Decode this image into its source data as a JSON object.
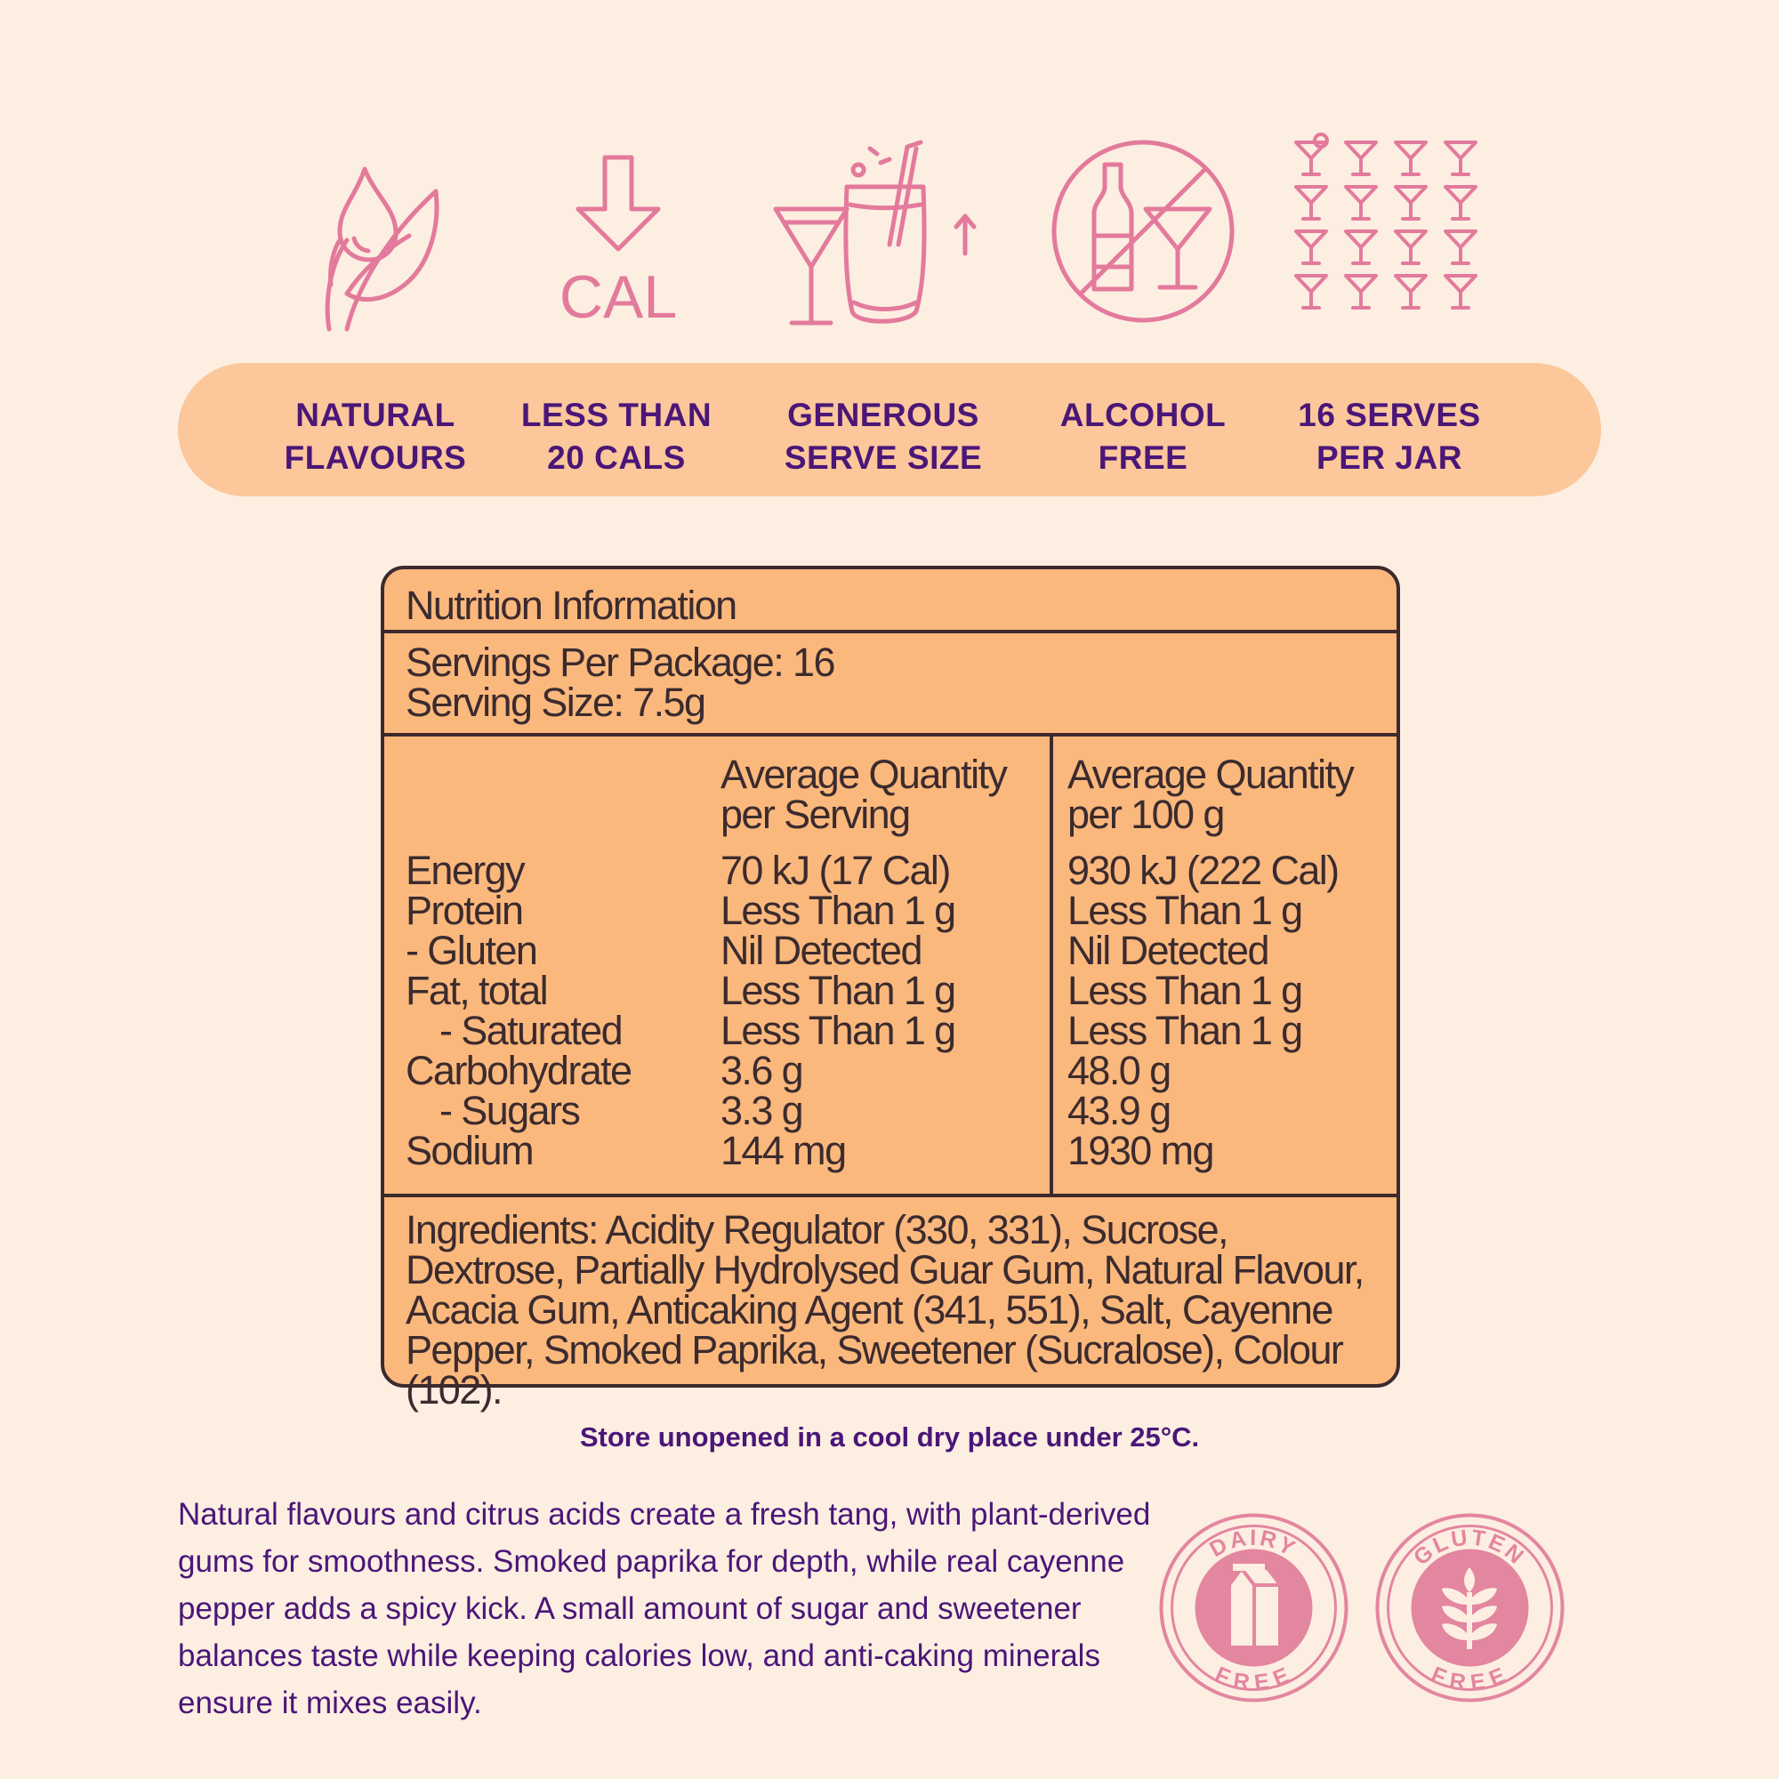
{
  "colors": {
    "background": "#fdeee2",
    "icon_pink": "#e37a9c",
    "feature_bar": "#fcc79a",
    "text_purple": "#4a1678",
    "panel_fill": "#fbb87d",
    "panel_border": "#3d2a2e"
  },
  "icons": [
    {
      "name": "leaf-drop-icon"
    },
    {
      "name": "down-arrow-cal-icon",
      "text": "CAL"
    },
    {
      "name": "cocktail-glass-icon"
    },
    {
      "name": "no-alcohol-icon"
    },
    {
      "name": "sixteen-glasses-icon"
    }
  ],
  "features": [
    {
      "line1": "NATURAL",
      "line2": "FLAVOURS"
    },
    {
      "line1": "LESS THAN",
      "line2": "20 CALS"
    },
    {
      "line1": "GENEROUS",
      "line2": "SERVE SIZE"
    },
    {
      "line1": "ALCOHOL",
      "line2": "FREE"
    },
    {
      "line1": "16 SERVES",
      "line2": "PER JAR"
    }
  ],
  "nutrition": {
    "title": "Nutrition Information",
    "servings_per_package": "Servings Per Package: 16",
    "serving_size": "Serving Size: 7.5g",
    "col_serving_header_1": "Average Quantity",
    "col_serving_header_2": "per Serving",
    "col_100g_header_1": "Average Quantity",
    "col_100g_header_2": "per 100 g",
    "rows": [
      {
        "label": "Energy",
        "per_serving": "70 kJ (17 Cal)",
        "per_100g": "930 kJ (222 Cal)"
      },
      {
        "label": "Protein",
        "per_serving": "Less Than 1 g",
        "per_100g": "Less Than 1 g"
      },
      {
        "label": "- Gluten",
        "per_serving": "Nil Detected",
        "per_100g": "Nil Detected"
      },
      {
        "label": "Fat, total",
        "per_serving": "Less Than 1 g",
        "per_100g": "Less Than 1 g"
      },
      {
        "label": "- Saturated",
        "per_serving": "Less Than 1 g",
        "per_100g": "Less Than 1 g"
      },
      {
        "label": "Carbohydrate",
        "per_serving": "3.6 g",
        "per_100g": "48.0 g"
      },
      {
        "label": "- Sugars",
        "per_serving": "3.3 g",
        "per_100g": "43.9 g"
      },
      {
        "label": "Sodium",
        "per_serving": "144 mg",
        "per_100g": "1930 mg"
      }
    ],
    "ingredients": "Ingredients: Acidity Regulator (330, 331), Sucrose, Dextrose, Partially Hydrolysed Guar Gum, Natural Flavour, Acacia Gum, Anticaking Agent (341, 551), Salt, Cayenne Pepper, Smoked Paprika, Sweetener (Sucralose), Colour (102)."
  },
  "storage": "Store unopened in a cool dry place under 25°C.",
  "description": "Natural flavours and citrus acids create a fresh tang, with plant-derived gums for smoothness. Smoked paprika for depth, while real cayenne pepper adds a spicy kick. A small amount of sugar and sweetener balances taste while keeping calories low, and anti-caking minerals ensure it mixes easily.",
  "badges": [
    {
      "top": "DAIRY",
      "bottom": "FREE",
      "icon": "milk-carton-icon"
    },
    {
      "top": "GLUTEN",
      "bottom": "FREE",
      "icon": "wheat-icon"
    }
  ]
}
